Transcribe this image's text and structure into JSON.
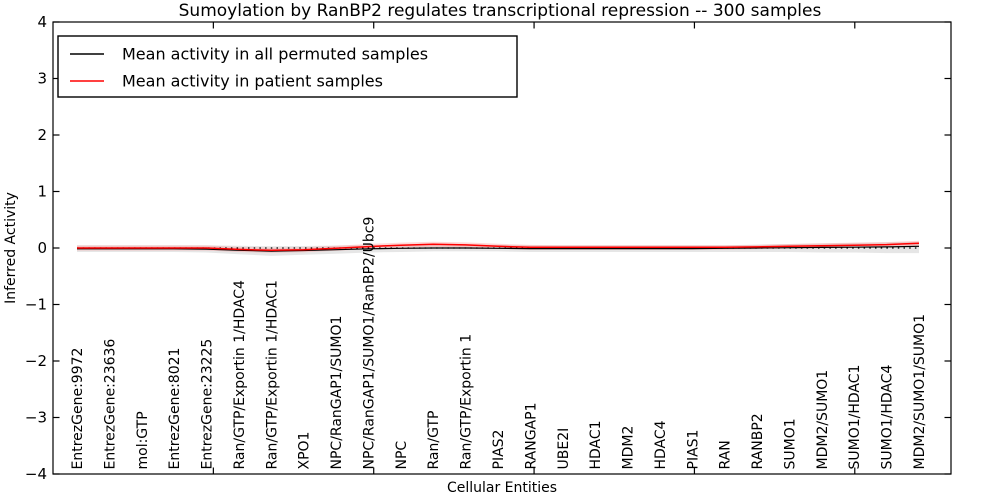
{
  "title": "Sumoylation by RanBP2 regulates transcriptional repression -- 300 samples",
  "legend": {
    "entries": [
      {
        "label": "Mean activity in all permuted samples",
        "color": "#000000"
      },
      {
        "label": "Mean activity in patient samples",
        "color": "#ff0000"
      }
    ]
  },
  "chart_data": {
    "type": "line",
    "title": "Sumoylation by RanBP2 regulates transcriptional repression -- 300 samples",
    "xlabel": "Cellular Entities",
    "ylabel": "Inferred Activity",
    "ylim": [
      -4,
      4
    ],
    "yticks": [
      4,
      3,
      2,
      1,
      0,
      -1,
      -2,
      -3,
      -4
    ],
    "ytick_labels": [
      "4",
      "3",
      "2",
      "1",
      "0",
      "−1",
      "−2",
      "−3",
      "−4"
    ],
    "xlim_numeric": [
      0,
      28
    ],
    "x_numeric_ticks": [
      5,
      10,
      15,
      20,
      25
    ],
    "grid": false,
    "legend_position": "upper left",
    "categories": [
      "EntrezGene:9972",
      "EntrezGene:23636",
      "mol:GTP",
      "EntrezGene:8021",
      "EntrezGene:23225",
      "Ran/GTP/Exportin 1/HDAC4",
      "Ran/GTP/Exportin 1/HDAC1",
      "XPO1",
      "NPC/RanGAP1/SUMO1",
      "NPC/RanGAP1/SUMO1/RanBP2/Ubc9",
      "NPC",
      "Ran/GTP",
      "Ran/GTP/Exportin 1",
      "PIAS2",
      "RANGAP1",
      "UBE2I",
      "HDAC1",
      "MDM2",
      "HDAC4",
      "PIAS1",
      "RAN",
      "RANBP2",
      "SUMO1",
      "MDM2/SUMO1",
      "SUMO1/HDAC1",
      "SUMO1/HDAC4",
      "MDM2/SUMO1/SUMO1"
    ],
    "series": [
      {
        "name": "Mean activity in all permuted samples",
        "color": "#000000",
        "style": "solid",
        "width": 1.2,
        "values": [
          -0.015,
          -0.015,
          -0.015,
          -0.015,
          -0.02,
          -0.04,
          -0.055,
          -0.045,
          -0.03,
          -0.015,
          -0.005,
          0,
          0,
          -0.005,
          -0.01,
          -0.01,
          -0.01,
          -0.01,
          -0.01,
          -0.01,
          -0.005,
          0,
          0.005,
          0.01,
          0.015,
          0.02,
          0.03
        ]
      },
      {
        "name": "Mean activity in patient samples",
        "color": "#ff0000",
        "style": "solid",
        "width": 1.5,
        "values": [
          0,
          0,
          0,
          0,
          0,
          -0.025,
          -0.04,
          -0.03,
          -0.005,
          0.025,
          0.05,
          0.065,
          0.055,
          0.03,
          0.015,
          0.015,
          0.015,
          0.015,
          0.015,
          0.015,
          0.015,
          0.02,
          0.03,
          0.04,
          0.05,
          0.06,
          0.085
        ]
      }
    ],
    "reference_line": {
      "value": 0,
      "style": "dotted",
      "color": "#000000"
    },
    "bands": [
      {
        "name": "permuted-activity-range",
        "fill": "#c8c8c8",
        "opacity": 0.45,
        "upper": [
          0.05,
          0.05,
          0.05,
          0.05,
          0.05,
          0.04,
          0.03,
          0.035,
          0.045,
          0.05,
          0.055,
          0.06,
          0.06,
          0.055,
          0.05,
          0.05,
          0.05,
          0.05,
          0.05,
          0.05,
          0.05,
          0.06,
          0.07,
          0.08,
          0.09,
          0.1,
          0.11
        ],
        "lower": [
          -0.07,
          -0.07,
          -0.07,
          -0.07,
          -0.08,
          -0.11,
          -0.14,
          -0.12,
          -0.1,
          -0.08,
          -0.07,
          -0.06,
          -0.06,
          -0.06,
          -0.07,
          -0.07,
          -0.07,
          -0.07,
          -0.07,
          -0.07,
          -0.07,
          -0.07,
          -0.07,
          -0.08,
          -0.08,
          -0.09,
          -0.09
        ],
        "legend": false
      },
      {
        "name": "patient-activity-range",
        "fill": "#ff7f7f",
        "opacity": 0.3,
        "upper": [
          0.045,
          0.045,
          0.045,
          0.045,
          0.045,
          0.02,
          0.005,
          0.015,
          0.04,
          0.07,
          0.095,
          0.11,
          0.1,
          0.075,
          0.055,
          0.05,
          0.05,
          0.05,
          0.05,
          0.05,
          0.05,
          0.055,
          0.07,
          0.085,
          0.095,
          0.105,
          0.13
        ],
        "lower": [
          -0.045,
          -0.045,
          -0.045,
          -0.045,
          -0.045,
          -0.07,
          -0.085,
          -0.075,
          -0.05,
          -0.02,
          0.005,
          0.02,
          0.01,
          -0.015,
          -0.03,
          -0.03,
          -0.03,
          -0.03,
          -0.03,
          -0.03,
          -0.03,
          -0.02,
          -0.01,
          -0.005,
          0.005,
          0.015,
          0.04
        ],
        "legend": false
      }
    ]
  }
}
